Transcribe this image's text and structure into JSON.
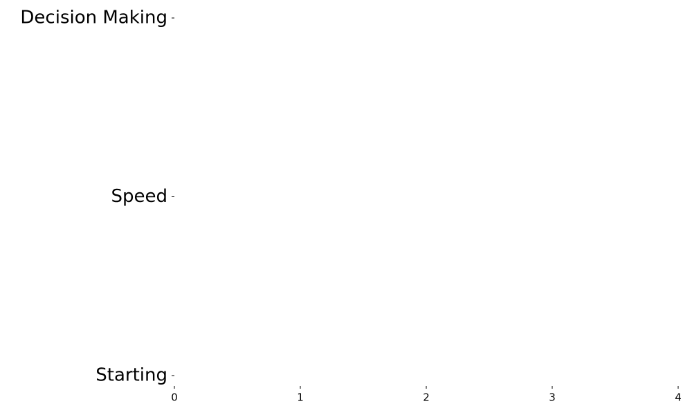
{
  "chart_data": {
    "type": "barh",
    "categories": [
      "Starting",
      "Speed",
      "Decision Making"
    ],
    "xlim": [
      0,
      4
    ],
    "xticks": [
      0,
      1,
      2,
      3,
      4
    ],
    "grid": false
  }
}
